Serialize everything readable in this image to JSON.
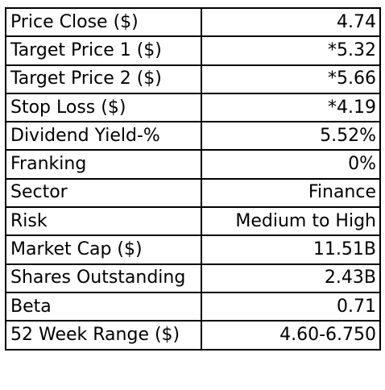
{
  "table": {
    "rows": [
      {
        "label": "Price Close ($)",
        "value": "4.74"
      },
      {
        "label": "Target Price 1 ($)",
        "value": "*5.32"
      },
      {
        "label": "Target Price 2 ($)",
        "value": "*5.66"
      },
      {
        "label": "Stop Loss ($)",
        "value": "*4.19"
      },
      {
        "label": "Dividend Yield-%",
        "value": "5.52%"
      },
      {
        "label": "Franking",
        "value": "0%"
      },
      {
        "label": "Sector",
        "value": "Finance"
      },
      {
        "label": "Risk",
        "value": "Medium to High"
      },
      {
        "label": "Market Cap ($)",
        "value": "11.51B"
      },
      {
        "label": "Shares Outstanding",
        "value": "2.43B"
      },
      {
        "label": "Beta",
        "value": "0.71"
      },
      {
        "label": "52 Week Range ($)",
        "value": "4.60-6.750"
      }
    ]
  }
}
